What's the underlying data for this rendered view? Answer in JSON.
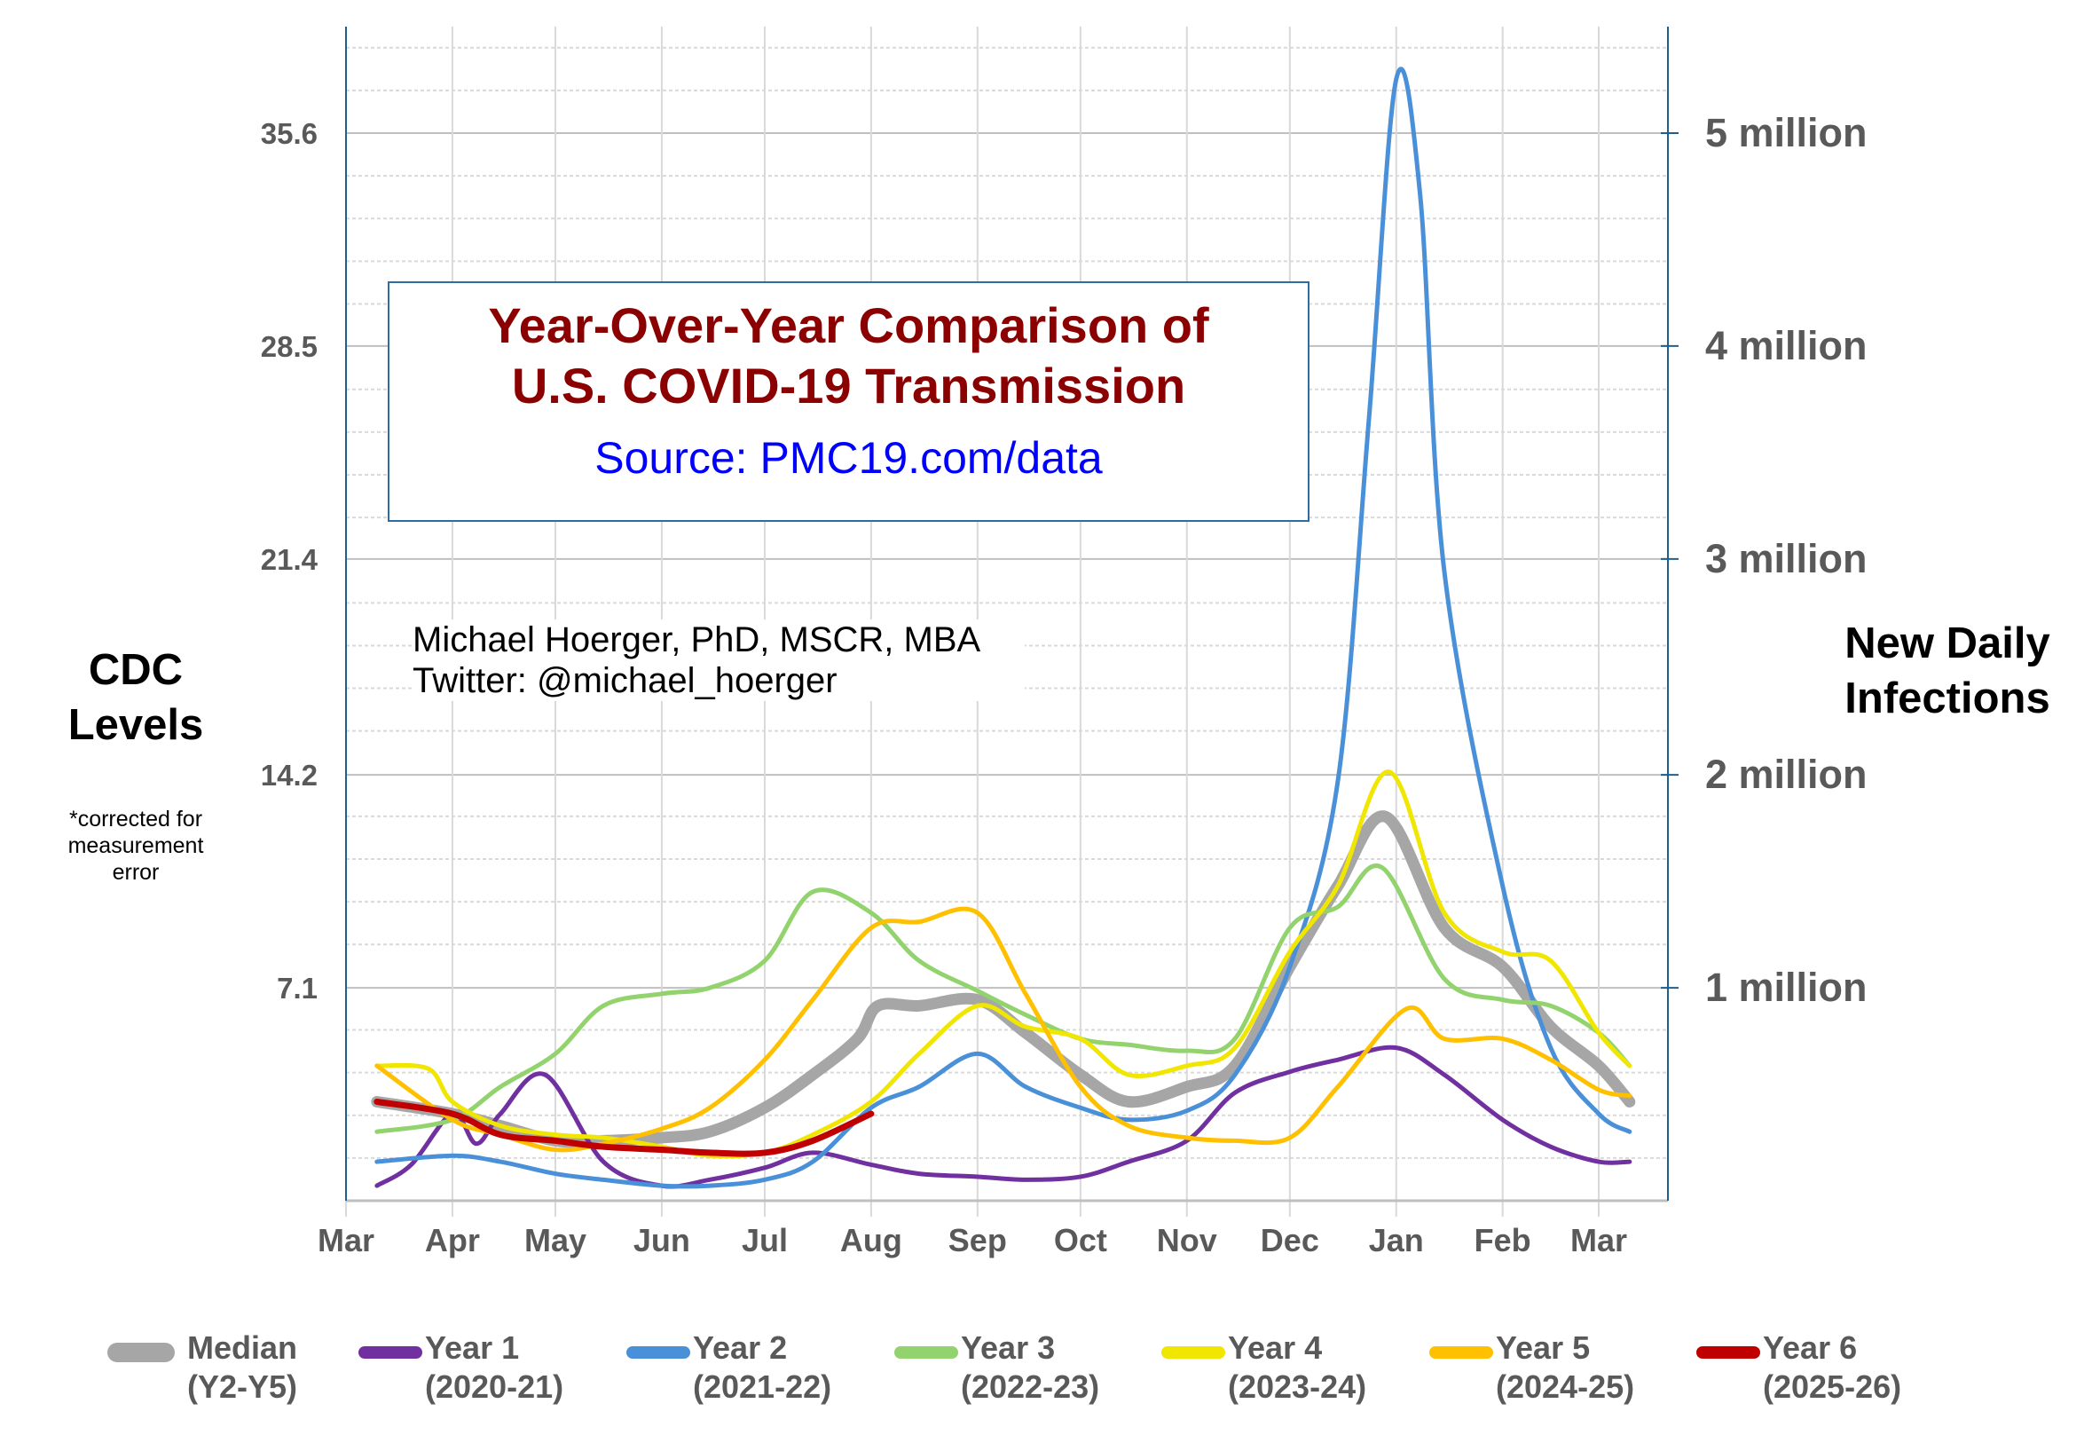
{
  "chart_data": {
    "type": "line",
    "title": "Year-Over-Year Comparison of U.S. COVID-19 Transmission",
    "title_lines": [
      "Year-Over-Year Comparison of",
      "U.S. COVID-19 Transmission"
    ],
    "source": "Source: PMC19.com/data",
    "author_lines": [
      "Michael Hoerger, PhD, MSCR, MBA",
      "Twitter: @michael_hoerger"
    ],
    "ylabel_left_lines": [
      "CDC",
      "Levels"
    ],
    "ylabel_left_note_lines": [
      "*corrected for",
      "measurement",
      "error"
    ],
    "ylabel_right_lines": [
      "New Daily",
      "Infections"
    ],
    "left_ticks": [
      "35.6",
      "28.5",
      "21.4",
      "14.2",
      "7.1"
    ],
    "left_tick_values": [
      35.6,
      28.5,
      21.4,
      14.2,
      7.1
    ],
    "right_ticks": [
      "5 million",
      "4 million",
      "3 million",
      "2 million",
      "1 million"
    ],
    "ylim": [
      0,
      39
    ],
    "x_ticks": [
      "Mar",
      "Apr",
      "May",
      "Jun",
      "Jul",
      "Aug",
      "Sep",
      "Oct",
      "Nov",
      "Dec",
      "Jan",
      "Feb",
      "Mar"
    ],
    "grid": true,
    "legend_position": "bottom",
    "series": [
      {
        "name": "Median",
        "sub": "(Y2-Y5)",
        "color": "#a6a6a6",
        "width": 13,
        "points": [
          [
            "Mar 10",
            3.3
          ],
          [
            "Apr 1",
            2.9
          ],
          [
            "Apr 15",
            2.5
          ],
          [
            "May 1",
            2.0
          ],
          [
            "May 15",
            2.0
          ],
          [
            "Jun 1",
            2.1
          ],
          [
            "Jun 15",
            2.3
          ],
          [
            "Jul 1",
            3.1
          ],
          [
            "Jul 15",
            4.2
          ],
          [
            "Jul 28",
            5.4
          ],
          [
            "Aug 3",
            6.5
          ],
          [
            "Aug 15",
            6.5
          ],
          [
            "Sep 1",
            6.7
          ],
          [
            "Sep 15",
            5.6
          ],
          [
            "Oct 1",
            4.2
          ],
          [
            "Oct 15",
            3.3
          ],
          [
            "Nov 1",
            3.8
          ],
          [
            "Nov 15",
            4.5
          ],
          [
            "Dec 1",
            7.8
          ],
          [
            "Dec 15",
            10.5
          ],
          [
            "Dec 29",
            12.8
          ],
          [
            "Jan 15",
            9.1
          ],
          [
            "Feb 1",
            7.8
          ],
          [
            "Feb 15",
            5.8
          ],
          [
            "Mar 1",
            4.5
          ],
          [
            "Mar 10",
            3.3
          ]
        ]
      },
      {
        "name": "Year 1",
        "sub": "(2020-21)",
        "color": "#7030a0",
        "width": 5,
        "points": [
          [
            "Mar 10",
            0.5
          ],
          [
            "Mar 20",
            1.2
          ],
          [
            "Apr 1",
            2.9
          ],
          [
            "Apr 8",
            1.9
          ],
          [
            "Apr 15",
            2.9
          ],
          [
            "Apr 28",
            4.2
          ],
          [
            "May 15",
            1.3
          ],
          [
            "Jun 1",
            0.5
          ],
          [
            "Jun 15",
            0.7
          ],
          [
            "Jul 1",
            1.1
          ],
          [
            "Jul 15",
            1.6
          ],
          [
            "Aug 1",
            1.2
          ],
          [
            "Aug 15",
            0.9
          ],
          [
            "Sep 1",
            0.8
          ],
          [
            "Sep 15",
            0.7
          ],
          [
            "Oct 1",
            0.8
          ],
          [
            "Oct 15",
            1.3
          ],
          [
            "Nov 1",
            2.0
          ],
          [
            "Nov 15",
            3.6
          ],
          [
            "Dec 1",
            4.3
          ],
          [
            "Dec 15",
            4.7
          ],
          [
            "Jan 1",
            5.1
          ],
          [
            "Jan 15",
            4.2
          ],
          [
            "Feb 1",
            2.7
          ],
          [
            "Feb 15",
            1.8
          ],
          [
            "Mar 1",
            1.3
          ],
          [
            "Mar 10",
            1.3
          ]
        ]
      },
      {
        "name": "Year 2",
        "sub": "(2021-22)",
        "color": "#4a90d9",
        "width": 5,
        "points": [
          [
            "Mar 10",
            1.3
          ],
          [
            "Apr 1",
            1.5
          ],
          [
            "Apr 15",
            1.3
          ],
          [
            "May 1",
            0.9
          ],
          [
            "May 15",
            0.7
          ],
          [
            "Jun 1",
            0.5
          ],
          [
            "Jun 15",
            0.5
          ],
          [
            "Jul 1",
            0.7
          ],
          [
            "Jul 15",
            1.3
          ],
          [
            "Aug 1",
            3.1
          ],
          [
            "Aug 15",
            3.8
          ],
          [
            "Sep 1",
            4.9
          ],
          [
            "Sep 15",
            3.8
          ],
          [
            "Oct 1",
            3.1
          ],
          [
            "Oct 15",
            2.7
          ],
          [
            "Nov 1",
            3.0
          ],
          [
            "Nov 15",
            4.2
          ],
          [
            "Dec 1",
            7.8
          ],
          [
            "Dec 15",
            14.0
          ],
          [
            "Dec 24",
            26.0
          ],
          [
            "Jan 1",
            37.4
          ],
          [
            "Jan 8",
            33.5
          ],
          [
            "Jan 15",
            21.0
          ],
          [
            "Feb 1",
            10.5
          ],
          [
            "Feb 15",
            5.1
          ],
          [
            "Mar 1",
            2.9
          ],
          [
            "Mar 10",
            2.3
          ]
        ]
      },
      {
        "name": "Year 3",
        "sub": "(2022-23)",
        "color": "#92d36e",
        "width": 5,
        "points": [
          [
            "Mar 10",
            2.3
          ],
          [
            "Apr 1",
            2.7
          ],
          [
            "Apr 15",
            3.8
          ],
          [
            "May 1",
            4.9
          ],
          [
            "May 15",
            6.5
          ],
          [
            "Jun 1",
            6.9
          ],
          [
            "Jun 15",
            7.1
          ],
          [
            "Jul 1",
            8.0
          ],
          [
            "Jul 15",
            10.3
          ],
          [
            "Aug 1",
            9.6
          ],
          [
            "Aug 15",
            8.0
          ],
          [
            "Sep 1",
            7.0
          ],
          [
            "Sep 15",
            6.2
          ],
          [
            "Oct 1",
            5.4
          ],
          [
            "Oct 15",
            5.2
          ],
          [
            "Nov 1",
            5.0
          ],
          [
            "Nov 15",
            5.4
          ],
          [
            "Dec 1",
            9.1
          ],
          [
            "Dec 15",
            9.8
          ],
          [
            "Dec 28",
            11.1
          ],
          [
            "Jan 15",
            7.4
          ],
          [
            "Feb 1",
            6.7
          ],
          [
            "Feb 15",
            6.5
          ],
          [
            "Mar 1",
            5.6
          ],
          [
            "Mar 10",
            4.5
          ]
        ]
      },
      {
        "name": "Year 4",
        "sub": "(2023-24)",
        "color": "#f0e600",
        "width": 5,
        "points": [
          [
            "Mar 10",
            4.5
          ],
          [
            "Mar 25",
            4.4
          ],
          [
            "Apr 1",
            3.3
          ],
          [
            "Apr 15",
            2.5
          ],
          [
            "May 1",
            2.2
          ],
          [
            "May 15",
            2.1
          ],
          [
            "Jun 1",
            1.8
          ],
          [
            "Jun 15",
            1.5
          ],
          [
            "Jul 1",
            1.6
          ],
          [
            "Jul 15",
            2.2
          ],
          [
            "Aug 1",
            3.3
          ],
          [
            "Aug 15",
            4.9
          ],
          [
            "Sep 1",
            6.5
          ],
          [
            "Sep 15",
            5.8
          ],
          [
            "Oct 1",
            5.4
          ],
          [
            "Oct 15",
            4.2
          ],
          [
            "Nov 1",
            4.5
          ],
          [
            "Nov 15",
            5.1
          ],
          [
            "Dec 1",
            8.3
          ],
          [
            "Dec 15",
            10.5
          ],
          [
            "Dec 30",
            14.3
          ],
          [
            "Jan 15",
            9.6
          ],
          [
            "Feb 1",
            8.3
          ],
          [
            "Feb 15",
            8.0
          ],
          [
            "Mar 1",
            5.6
          ],
          [
            "Mar 10",
            4.5
          ]
        ]
      },
      {
        "name": "Year 5",
        "sub": "(2024-25)",
        "color": "#ffc000",
        "width": 5,
        "points": [
          [
            "Mar 10",
            4.5
          ],
          [
            "Apr 1",
            2.7
          ],
          [
            "Apr 15",
            2.2
          ],
          [
            "May 1",
            1.7
          ],
          [
            "May 15",
            1.9
          ],
          [
            "Jun 1",
            2.4
          ],
          [
            "Jun 15",
            3.1
          ],
          [
            "Jul 1",
            4.7
          ],
          [
            "Jul 15",
            6.7
          ],
          [
            "Aug 1",
            9.1
          ],
          [
            "Aug 15",
            9.3
          ],
          [
            "Sep 1",
            9.6
          ],
          [
            "Sep 15",
            6.9
          ],
          [
            "Oct 1",
            3.8
          ],
          [
            "Oct 15",
            2.5
          ],
          [
            "Nov 1",
            2.1
          ],
          [
            "Nov 15",
            2.0
          ],
          [
            "Dec 1",
            2.1
          ],
          [
            "Dec 15",
            3.8
          ],
          [
            "Jan 4",
            6.4
          ],
          [
            "Jan 15",
            5.4
          ],
          [
            "Feb 1",
            5.4
          ],
          [
            "Feb 15",
            4.7
          ],
          [
            "Mar 1",
            3.7
          ],
          [
            "Mar 10",
            3.5
          ]
        ]
      },
      {
        "name": "Year 6",
        "sub": "(2025-26)",
        "color": "#c00000",
        "width": 7,
        "points": [
          [
            "Mar 10",
            3.3
          ],
          [
            "Apr 1",
            2.9
          ],
          [
            "Apr 15",
            2.2
          ],
          [
            "May 1",
            2.0
          ],
          [
            "May 15",
            1.8
          ],
          [
            "Jun 1",
            1.7
          ],
          [
            "Jun 15",
            1.6
          ],
          [
            "Jul 1",
            1.6
          ],
          [
            "Jul 15",
            2.0
          ],
          [
            "Aug 1",
            2.9
          ]
        ]
      }
    ]
  }
}
